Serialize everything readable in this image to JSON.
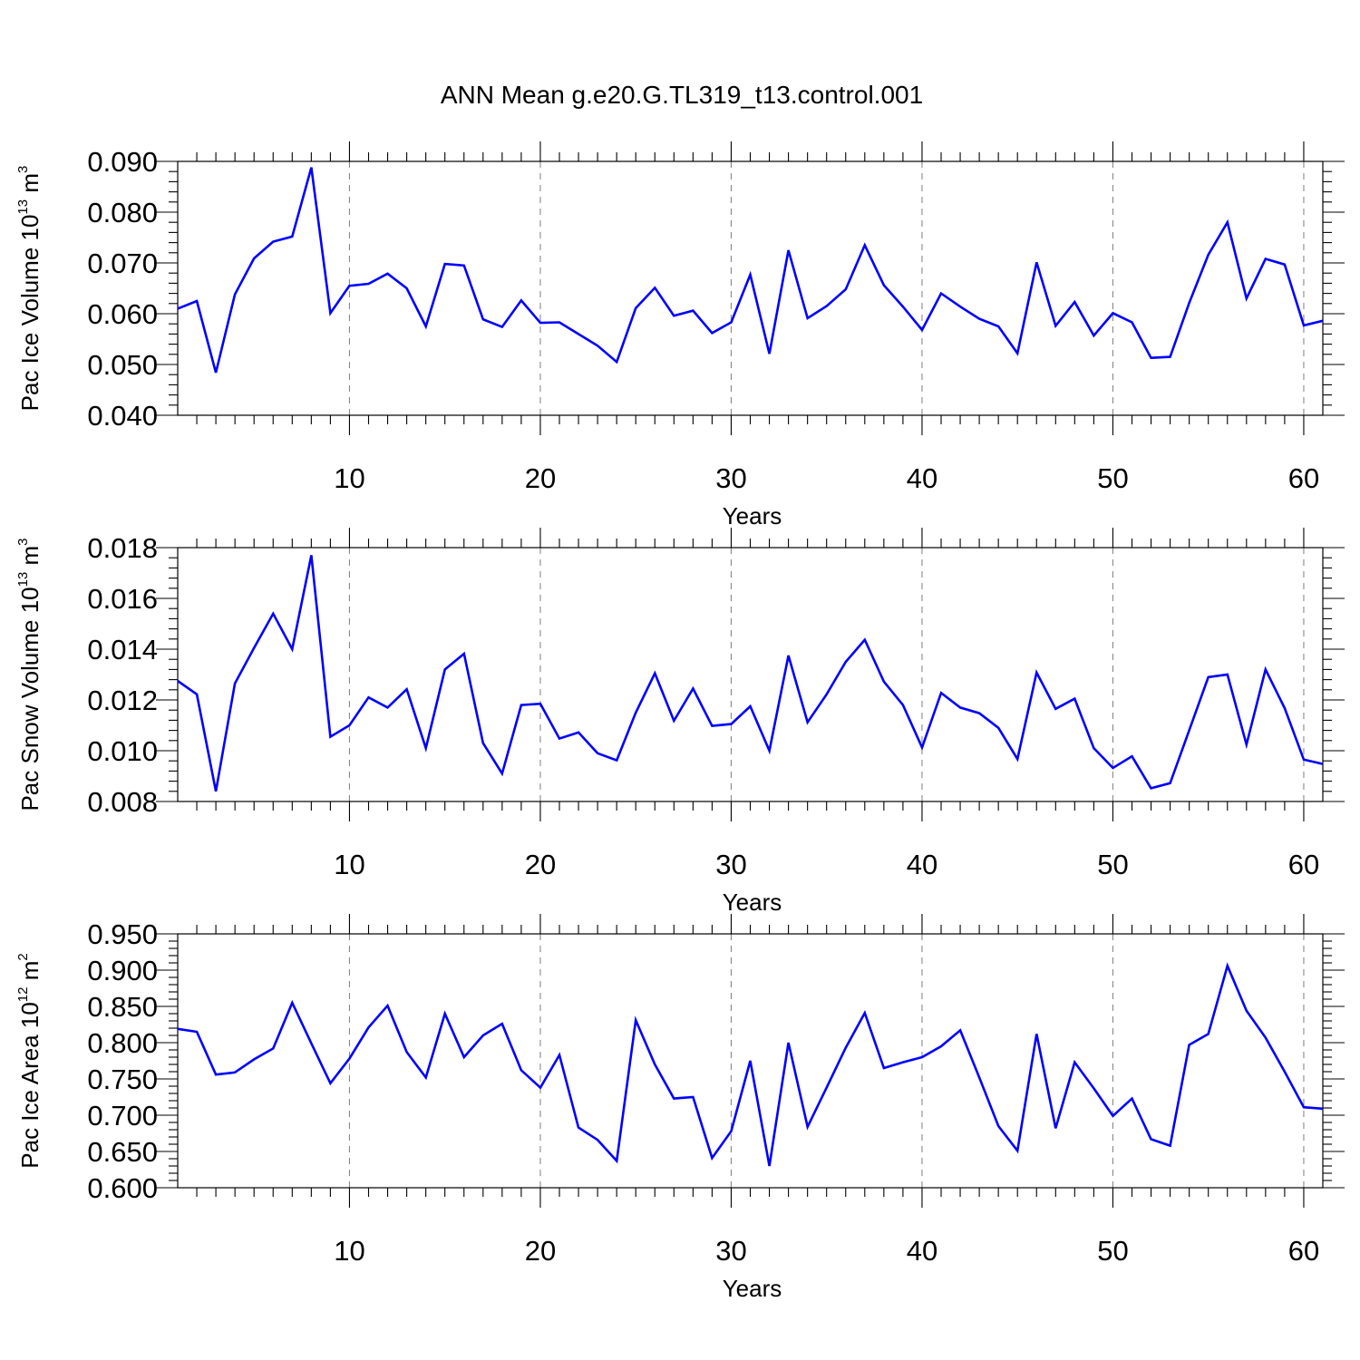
{
  "title": "ANN Mean g.e20.G.TL319_t13.control.001",
  "chart_data": [
    {
      "type": "line",
      "ylabel": "Pac Ice Volume 10",
      "ylabel_exp": "13",
      "ylabel_unit": " m",
      "ylabel_unit_exp": "3",
      "xlabel": "Years",
      "xlim": [
        1,
        61
      ],
      "ylim": [
        0.04,
        0.09
      ],
      "yticks": [
        "0.040",
        "0.050",
        "0.060",
        "0.070",
        "0.080",
        "0.090"
      ],
      "xticks": [
        "10",
        "20",
        "30",
        "40",
        "50",
        "60"
      ],
      "grid": "vertical dashed at major x ticks",
      "color": "#0000ff",
      "x": [
        1,
        2,
        3,
        4,
        5,
        6,
        7,
        8,
        9,
        10,
        11,
        12,
        13,
        14,
        15,
        16,
        17,
        18,
        19,
        20,
        21,
        22,
        23,
        24,
        25,
        26,
        27,
        28,
        29,
        30,
        31,
        32,
        33,
        34,
        35,
        36,
        37,
        38,
        39,
        40,
        41,
        42,
        43,
        44,
        45,
        46,
        47,
        48,
        49,
        50,
        51,
        52,
        53,
        54,
        55,
        56,
        57,
        58,
        59,
        60,
        61
      ],
      "values": [
        0.061,
        0.0625,
        0.0484,
        0.0638,
        0.0709,
        0.0742,
        0.0752,
        0.0888,
        0.0601,
        0.0655,
        0.0659,
        0.0679,
        0.065,
        0.0575,
        0.0698,
        0.0695,
        0.0589,
        0.0574,
        0.0626,
        0.0582,
        0.0583,
        0.056,
        0.0537,
        0.0505,
        0.0611,
        0.0651,
        0.0596,
        0.0606,
        0.0562,
        0.0583,
        0.0677,
        0.0521,
        0.0725,
        0.0591,
        0.0615,
        0.0648,
        0.0735,
        0.0656,
        0.0614,
        0.0568,
        0.064,
        0.0614,
        0.059,
        0.0575,
        0.0522,
        0.0701,
        0.0576,
        0.0623,
        0.0557,
        0.0601,
        0.0583,
        0.0513,
        0.0515,
        0.0621,
        0.0716,
        0.078,
        0.063,
        0.0708,
        0.0697,
        0.0577,
        0.0586
      ]
    },
    {
      "type": "line",
      "ylabel": "Pac Snow Volume 10",
      "ylabel_exp": "13",
      "ylabel_unit": " m",
      "ylabel_unit_exp": "3",
      "xlabel": "Years",
      "xlim": [
        1,
        61
      ],
      "ylim": [
        0.008,
        0.018
      ],
      "yticks": [
        "0.008",
        "0.010",
        "0.012",
        "0.014",
        "0.016",
        "0.018"
      ],
      "xticks": [
        "10",
        "20",
        "30",
        "40",
        "50",
        "60"
      ],
      "grid": "vertical dashed at major x ticks",
      "color": "#0000ff",
      "x": [
        1,
        2,
        3,
        4,
        5,
        6,
        7,
        8,
        9,
        10,
        11,
        12,
        13,
        14,
        15,
        16,
        17,
        18,
        19,
        20,
        21,
        22,
        23,
        24,
        25,
        26,
        27,
        28,
        29,
        30,
        31,
        32,
        33,
        34,
        35,
        36,
        37,
        38,
        39,
        40,
        41,
        42,
        43,
        44,
        45,
        46,
        47,
        48,
        49,
        50,
        51,
        52,
        53,
        54,
        55,
        56,
        57,
        58,
        59,
        60,
        61
      ],
      "values": [
        0.01275,
        0.01222,
        0.0084,
        0.01265,
        0.01405,
        0.0154,
        0.014,
        0.0177,
        0.01055,
        0.011,
        0.0121,
        0.0117,
        0.01242,
        0.0101,
        0.0132,
        0.01382,
        0.0103,
        0.0091,
        0.0118,
        0.01185,
        0.01048,
        0.01072,
        0.0099,
        0.00962,
        0.0115,
        0.01305,
        0.01118,
        0.01245,
        0.01098,
        0.01105,
        0.01175,
        0.01,
        0.01375,
        0.01112,
        0.01222,
        0.0135,
        0.01437,
        0.01272,
        0.0118,
        0.01013,
        0.01228,
        0.0117,
        0.01148,
        0.0109,
        0.00967,
        0.01308,
        0.01165,
        0.01205,
        0.0101,
        0.00932,
        0.00978,
        0.00852,
        0.00872,
        0.0108,
        0.0129,
        0.013,
        0.01024,
        0.0132,
        0.01168,
        0.00965,
        0.00948
      ]
    },
    {
      "type": "line",
      "ylabel": "Pac Ice Area 10",
      "ylabel_exp": "12",
      "ylabel_unit": " m",
      "ylabel_unit_exp": "2",
      "xlabel": "Years",
      "xlim": [
        1,
        61
      ],
      "ylim": [
        0.6,
        0.95
      ],
      "yticks": [
        "0.600",
        "0.650",
        "0.700",
        "0.750",
        "0.800",
        "0.850",
        "0.900",
        "0.950"
      ],
      "xticks": [
        "10",
        "20",
        "30",
        "40",
        "50",
        "60"
      ],
      "grid": "vertical dashed at major x ticks",
      "color": "#0000ff",
      "x": [
        1,
        2,
        3,
        4,
        5,
        6,
        7,
        8,
        9,
        10,
        11,
        12,
        13,
        14,
        15,
        16,
        17,
        18,
        19,
        20,
        21,
        22,
        23,
        24,
        25,
        26,
        27,
        28,
        29,
        30,
        31,
        32,
        33,
        34,
        35,
        36,
        37,
        38,
        39,
        40,
        41,
        42,
        43,
        44,
        45,
        46,
        47,
        48,
        49,
        50,
        51,
        52,
        53,
        54,
        55,
        56,
        57,
        58,
        59,
        60,
        61
      ],
      "values": [
        0.819,
        0.815,
        0.756,
        0.759,
        0.777,
        0.792,
        0.855,
        0.799,
        0.744,
        0.778,
        0.821,
        0.851,
        0.787,
        0.752,
        0.84,
        0.78,
        0.81,
        0.826,
        0.762,
        0.738,
        0.783,
        0.683,
        0.666,
        0.637,
        0.831,
        0.77,
        0.723,
        0.725,
        0.641,
        0.678,
        0.775,
        0.63,
        0.8,
        0.684,
        0.738,
        0.793,
        0.841,
        0.765,
        0.773,
        0.78,
        0.795,
        0.817,
        0.752,
        0.685,
        0.651,
        0.812,
        0.682,
        0.773,
        0.737,
        0.699,
        0.723,
        0.667,
        0.658,
        0.797,
        0.812,
        0.906,
        0.844,
        0.807,
        0.76,
        0.711,
        0.709
      ]
    }
  ]
}
